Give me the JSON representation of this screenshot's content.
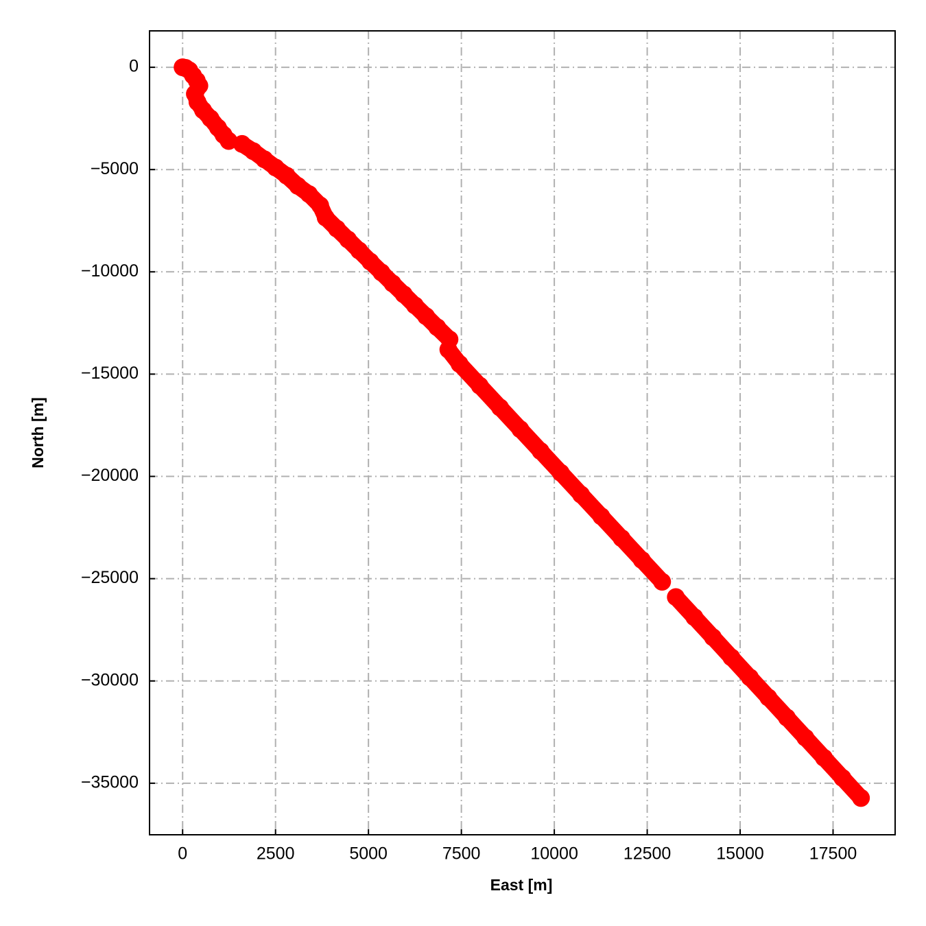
{
  "chart_data": {
    "type": "scatter",
    "xlabel": "East [m]",
    "ylabel": "North [m]",
    "color": "#ff0000",
    "grid": true,
    "x": [
      0,
      80,
      180,
      280,
      380,
      450,
      330,
      400,
      550,
      750,
      950,
      1100,
      1240,
      null,
      1600,
      1900,
      2200,
      2500,
      2800,
      3100,
      3400,
      3700,
      3850,
      4150,
      4450,
      4750,
      5050,
      5350,
      5650,
      5950,
      6250,
      6550,
      6850,
      7180,
      null,
      7150,
      7450,
      7995,
      8540,
      9085,
      9630,
      10175,
      10720,
      11265,
      11810,
      12355,
      12900,
      null,
      13270,
      13768,
      14266,
      14764,
      15262,
      15760,
      16258,
      16756,
      17254,
      17752,
      18250
    ],
    "y": [
      0,
      -30,
      -150,
      -400,
      -650,
      -900,
      -1300,
      -1700,
      -2100,
      -2500,
      -2950,
      -3300,
      -3600,
      null,
      -3750,
      -4100,
      -4500,
      -4900,
      -5300,
      -5800,
      -6200,
      -6750,
      -7350,
      -7890,
      -8420,
      -8960,
      -9500,
      -10030,
      -10570,
      -11100,
      -11640,
      -12170,
      -12710,
      -13300,
      null,
      -13800,
      -14500,
      -15565,
      -16630,
      -17695,
      -18760,
      -19825,
      -20890,
      -21955,
      -23020,
      -24085,
      -25150,
      null,
      -25900,
      -26882,
      -27864,
      -28846,
      -29828,
      -30810,
      -31792,
      -32774,
      -33756,
      -34738,
      -35720
    ],
    "xlim": [
      -890,
      19170
    ],
    "ylim": [
      -37520,
      1780
    ],
    "xticks": [
      0,
      2500,
      5000,
      7500,
      10000,
      12500,
      15000,
      17500
    ],
    "yticks": [
      0,
      {
        "value": -5000,
        "label": "−5000"
      },
      {
        "value": -10000,
        "label": "−10000"
      },
      {
        "value": -15000,
        "label": "−15000"
      },
      {
        "value": -20000,
        "label": "−20000"
      },
      {
        "value": -25000,
        "label": "−25000"
      },
      {
        "value": -30000,
        "label": "−30000"
      },
      {
        "value": -35000,
        "label": "−35000"
      }
    ]
  }
}
